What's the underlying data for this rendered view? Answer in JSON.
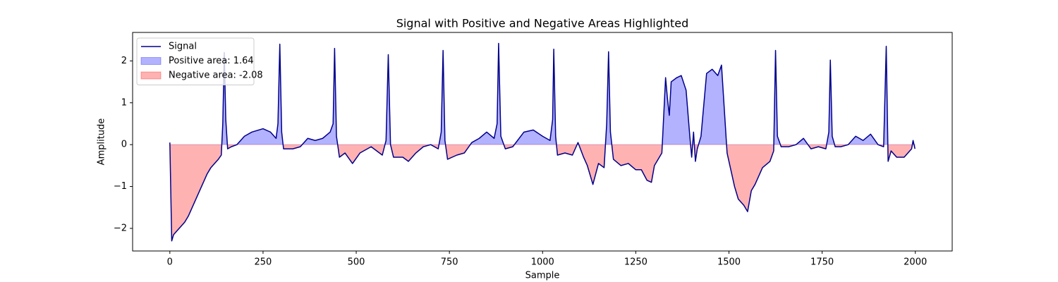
{
  "chart_data": {
    "type": "line",
    "title": "Signal with Positive and Negative Areas Highlighted",
    "x_label": "Sample",
    "y_label": "Amplitude",
    "x": [
      0,
      5,
      10,
      20,
      30,
      40,
      50,
      60,
      70,
      80,
      90,
      100,
      110,
      120,
      130,
      138,
      142,
      146,
      150,
      155,
      165,
      180,
      200,
      220,
      250,
      270,
      285,
      290,
      295,
      300,
      305,
      330,
      350,
      370,
      390,
      410,
      430,
      438,
      442,
      447,
      455,
      470,
      490,
      510,
      540,
      570,
      580,
      586,
      592,
      600,
      625,
      640,
      660,
      680,
      700,
      720,
      728,
      733,
      738,
      745,
      770,
      790,
      810,
      830,
      850,
      870,
      878,
      882,
      888,
      900,
      920,
      950,
      975,
      1000,
      1020,
      1027,
      1030,
      1035,
      1040,
      1060,
      1080,
      1095,
      1110,
      1120,
      1135,
      1150,
      1165,
      1172,
      1177,
      1182,
      1190,
      1210,
      1230,
      1250,
      1265,
      1280,
      1292,
      1300,
      1320,
      1330,
      1335,
      1340,
      1345,
      1360,
      1372,
      1385,
      1395,
      1400,
      1405,
      1410,
      1415,
      1425,
      1440,
      1455,
      1470,
      1480,
      1485,
      1495,
      1505,
      1515,
      1525,
      1540,
      1550,
      1560,
      1570,
      1590,
      1610,
      1620,
      1625,
      1630,
      1640,
      1660,
      1680,
      1700,
      1720,
      1740,
      1760,
      1768,
      1772,
      1777,
      1785,
      1800,
      1820,
      1840,
      1860,
      1880,
      1900,
      1915,
      1922,
      1927,
      1935,
      1950,
      1970,
      1990,
      1994,
      1999
    ],
    "series": [
      {
        "name": "Signal",
        "color": "#00008b",
        "values": [
          0.05,
          -2.3,
          -2.15,
          -2.05,
          -1.95,
          -1.85,
          -1.7,
          -1.5,
          -1.3,
          -1.1,
          -0.9,
          -0.7,
          -0.55,
          -0.45,
          -0.35,
          -0.25,
          0.5,
          2.2,
          0.6,
          -0.1,
          -0.05,
          0.0,
          0.2,
          0.3,
          0.38,
          0.3,
          0.15,
          0.5,
          2.4,
          0.3,
          -0.1,
          -0.1,
          -0.05,
          0.15,
          0.1,
          0.15,
          0.3,
          0.5,
          2.3,
          0.2,
          -0.3,
          -0.2,
          -0.45,
          -0.2,
          -0.05,
          -0.25,
          0.1,
          2.15,
          0.0,
          -0.3,
          -0.3,
          -0.4,
          -0.2,
          -0.05,
          0.0,
          -0.1,
          0.3,
          2.25,
          0.1,
          -0.35,
          -0.25,
          -0.2,
          0.05,
          0.15,
          0.3,
          0.15,
          0.5,
          2.42,
          0.2,
          -0.1,
          -0.05,
          0.3,
          0.35,
          0.2,
          0.1,
          0.6,
          2.28,
          0.2,
          -0.25,
          -0.2,
          -0.25,
          0.05,
          -0.3,
          -0.5,
          -0.95,
          -0.45,
          -0.55,
          0.5,
          2.22,
          0.3,
          -0.35,
          -0.5,
          -0.45,
          -0.6,
          -0.6,
          -0.85,
          -0.9,
          -0.5,
          -0.2,
          1.6,
          1.1,
          0.7,
          1.5,
          1.6,
          1.65,
          1.3,
          0.2,
          -0.3,
          0.3,
          -0.4,
          -0.1,
          0.2,
          1.7,
          1.8,
          1.65,
          1.9,
          1.2,
          -0.2,
          -0.6,
          -1.0,
          -1.3,
          -1.45,
          -1.6,
          -1.1,
          -0.95,
          -0.55,
          -0.4,
          -0.15,
          2.25,
          0.2,
          -0.05,
          -0.05,
          0.0,
          0.15,
          -0.1,
          -0.05,
          -0.1,
          0.3,
          2.02,
          0.2,
          -0.05,
          -0.05,
          0.0,
          0.2,
          0.1,
          0.25,
          0.0,
          -0.05,
          2.35,
          -0.4,
          -0.15,
          -0.3,
          -0.3,
          -0.1,
          0.1,
          -0.1
        ]
      }
    ],
    "areas": [
      {
        "name": "Positive area: 1.64",
        "color": "#0000ff",
        "side": "positive"
      },
      {
        "name": "Negative area: -2.08",
        "color": "#ff0000",
        "side": "negative"
      }
    ],
    "xlim": [
      -99.95,
      2098.95
    ],
    "xticks": [
      0,
      250,
      500,
      750,
      1000,
      1250,
      1500,
      1750,
      2000
    ],
    "ylim": [
      -2.54,
      2.68
    ],
    "yticks": [
      {
        "value": -2,
        "label": "−2"
      },
      {
        "value": -1,
        "label": "−1"
      },
      0,
      1,
      2
    ],
    "legend": "upper-left",
    "grid": false
  }
}
